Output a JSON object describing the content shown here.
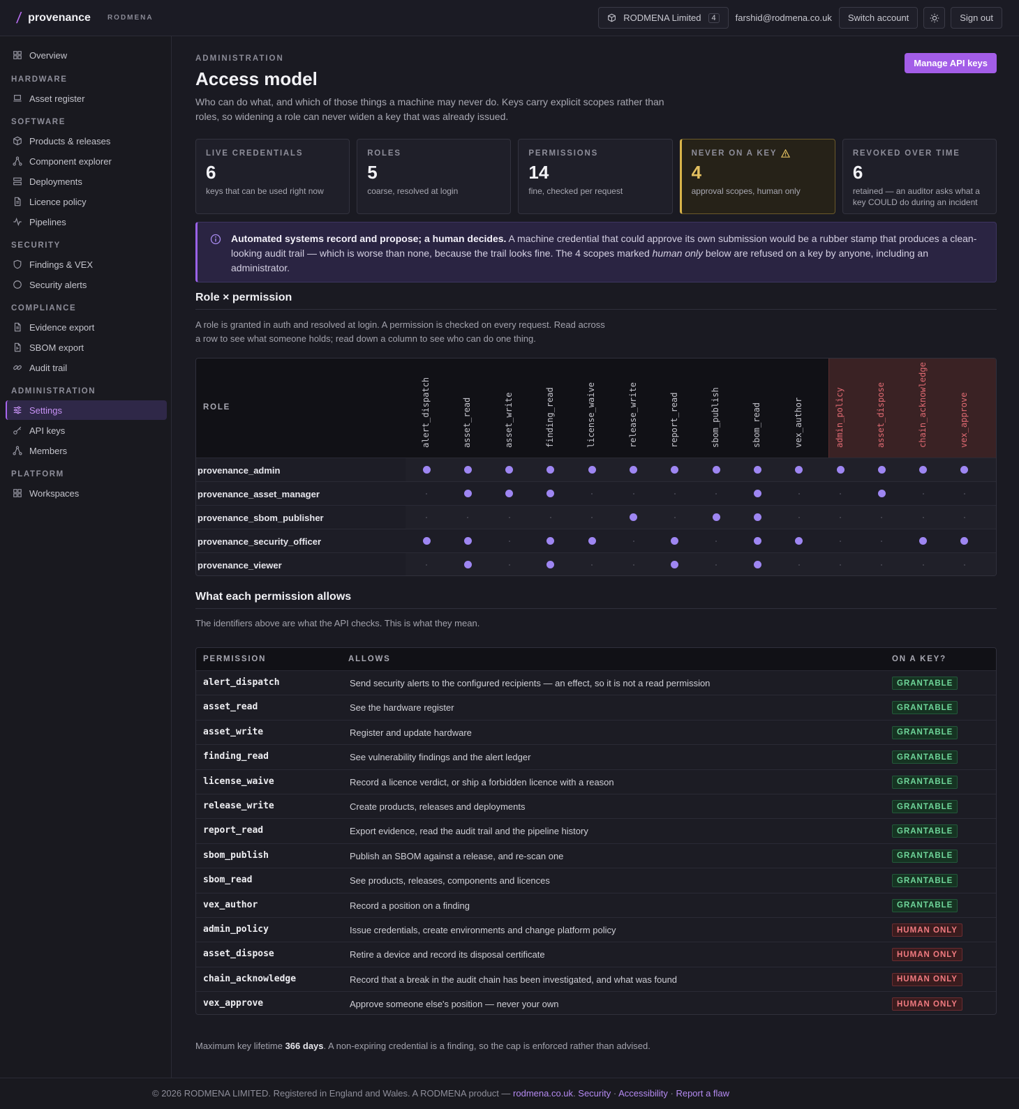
{
  "topbar": {
    "brand_name": "provenance",
    "brand_org": "RODMENA",
    "org_selector": "RODMENA Limited",
    "org_count": "4",
    "email": "farshid@rodmena.co.uk",
    "switch_account": "Switch account",
    "sign_out": "Sign out"
  },
  "sidebar": {
    "overview": "Overview",
    "groups": {
      "hardware": "HARDWARE",
      "software": "SOFTWARE",
      "security": "SECURITY",
      "compliance": "COMPLIANCE",
      "administration": "ADMINISTRATION",
      "platform": "PLATFORM"
    },
    "items": {
      "asset_register": "Asset register",
      "products_releases": "Products & releases",
      "component_explorer": "Component explorer",
      "deployments": "Deployments",
      "licence_policy": "Licence policy",
      "pipelines": "Pipelines",
      "findings_vex": "Findings & VEX",
      "security_alerts": "Security alerts",
      "evidence_export": "Evidence export",
      "sbom_export": "SBOM export",
      "audit_trail": "Audit trail",
      "settings": "Settings",
      "api_keys": "API keys",
      "members": "Members",
      "workspaces": "Workspaces"
    }
  },
  "page": {
    "eyebrow": "ADMINISTRATION",
    "title": "Access model",
    "subtitle": "Who can do what, and which of those things a machine may never do. Keys carry explicit scopes rather than roles, so widening a role can never widen a key that was already issued.",
    "manage_button": "Manage API keys"
  },
  "stats": [
    {
      "label": "LIVE CREDENTIALS",
      "value": "6",
      "desc": "keys that can be used right now"
    },
    {
      "label": "ROLES",
      "value": "5",
      "desc": "coarse, resolved at login"
    },
    {
      "label": "PERMISSIONS",
      "value": "14",
      "desc": "fine, checked per request"
    },
    {
      "label": "NEVER ON A KEY",
      "value": "4",
      "desc": "approval scopes, human only"
    },
    {
      "label": "REVOKED OVER TIME",
      "value": "6",
      "desc": "retained — an auditor asks what a key COULD do during an incident"
    }
  ],
  "callout": {
    "lead": "Automated systems record and propose; a human decides.",
    "text1": " A machine credential that could approve its own submission would be a rubber stamp that produces a clean-looking audit trail — which is worse than none, because the trail looks fine. The 4 scopes marked ",
    "emph": "human only",
    "text2": " below are refused on a key by anyone, including an administrator."
  },
  "matrix_section": {
    "title": "Role × permission",
    "desc1": "A role is granted in auth and resolved at login. A permission is checked on every request. Read across",
    "desc2": "a row to see what someone holds; read down a column to see who can do one thing.",
    "role_header": "ROLE",
    "columns": [
      "alert_dispatch",
      "asset_read",
      "asset_write",
      "finding_read",
      "license_waive",
      "release_write",
      "report_read",
      "sbom_publish",
      "sbom_read",
      "vex_author",
      "admin_policy",
      "asset_dispose",
      "chain_acknowledge",
      "vex_approve"
    ],
    "danger_from": 10,
    "rows": [
      {
        "role": "provenance_admin",
        "grants": [
          1,
          1,
          1,
          1,
          1,
          1,
          1,
          1,
          1,
          1,
          1,
          1,
          1,
          1
        ]
      },
      {
        "role": "provenance_asset_manager",
        "grants": [
          0,
          1,
          1,
          1,
          0,
          0,
          0,
          0,
          1,
          0,
          0,
          1,
          0,
          0
        ]
      },
      {
        "role": "provenance_sbom_publisher",
        "grants": [
          0,
          0,
          0,
          0,
          0,
          1,
          0,
          1,
          1,
          0,
          0,
          0,
          0,
          0
        ]
      },
      {
        "role": "provenance_security_officer",
        "grants": [
          1,
          1,
          0,
          1,
          1,
          0,
          1,
          0,
          1,
          1,
          0,
          0,
          1,
          1
        ]
      },
      {
        "role": "provenance_viewer",
        "grants": [
          0,
          1,
          0,
          1,
          0,
          0,
          1,
          0,
          1,
          0,
          0,
          0,
          0,
          0
        ]
      }
    ]
  },
  "perm_section": {
    "title": "What each permission allows",
    "desc": "The identifiers above are what the API checks. This is what they mean.",
    "headers": {
      "permission": "PERMISSION",
      "allows": "ALLOWS",
      "on_key": "ON A KEY?"
    },
    "rows": [
      {
        "name": "alert_dispatch",
        "allows": "Send security alerts to the configured recipients — an effect, so it is not a read permission",
        "status": "GRANTABLE"
      },
      {
        "name": "asset_read",
        "allows": "See the hardware register",
        "status": "GRANTABLE"
      },
      {
        "name": "asset_write",
        "allows": "Register and update hardware",
        "status": "GRANTABLE"
      },
      {
        "name": "finding_read",
        "allows": "See vulnerability findings and the alert ledger",
        "status": "GRANTABLE"
      },
      {
        "name": "license_waive",
        "allows": "Record a licence verdict, or ship a forbidden licence with a reason",
        "status": "GRANTABLE"
      },
      {
        "name": "release_write",
        "allows": "Create products, releases and deployments",
        "status": "GRANTABLE"
      },
      {
        "name": "report_read",
        "allows": "Export evidence, read the audit trail and the pipeline history",
        "status": "GRANTABLE"
      },
      {
        "name": "sbom_publish",
        "allows": "Publish an SBOM against a release, and re-scan one",
        "status": "GRANTABLE"
      },
      {
        "name": "sbom_read",
        "allows": "See products, releases, components and licences",
        "status": "GRANTABLE"
      },
      {
        "name": "vex_author",
        "allows": "Record a position on a finding",
        "status": "GRANTABLE"
      },
      {
        "name": "admin_policy",
        "allows": "Issue credentials, create environments and change platform policy",
        "status": "HUMAN ONLY"
      },
      {
        "name": "asset_dispose",
        "allows": "Retire a device and record its disposal certificate",
        "status": "HUMAN ONLY"
      },
      {
        "name": "chain_acknowledge",
        "allows": "Record that a break in the audit chain has been investigated, and what was found",
        "status": "HUMAN ONLY"
      },
      {
        "name": "vex_approve",
        "allows": "Approve someone else's position — never your own",
        "status": "HUMAN ONLY"
      }
    ]
  },
  "footnote": {
    "pre": "Maximum key lifetime ",
    "bold": "366 days",
    "post": ". A non-expiring credential is a finding, so the cap is enforced rather than advised."
  },
  "footer": {
    "text": "© 2026 RODMENA LIMITED. Registered in England and Wales. A RODMENA product — ",
    "link1": "rodmena.co.uk",
    "sep1": ". ",
    "link2": "Security",
    "sep2": " · ",
    "link3": "Accessibility",
    "sep3": " · ",
    "link4": "Report a flaw"
  }
}
